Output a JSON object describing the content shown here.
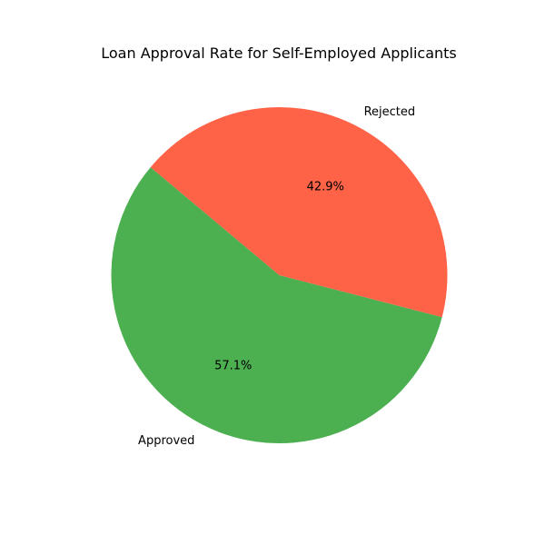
{
  "chart_data": {
    "type": "pie",
    "title": "Loan Approval Rate for Self-Employed Applicants",
    "slices": [
      {
        "label": "Approved",
        "value": 57.1,
        "percent_label": "57.1%",
        "color": "#4CAF50"
      },
      {
        "label": "Rejected",
        "value": 42.9,
        "percent_label": "42.9%",
        "color": "#FF6347"
      }
    ],
    "start_angle_deg": 140,
    "direction": "counterclockwise",
    "legend": "none"
  }
}
